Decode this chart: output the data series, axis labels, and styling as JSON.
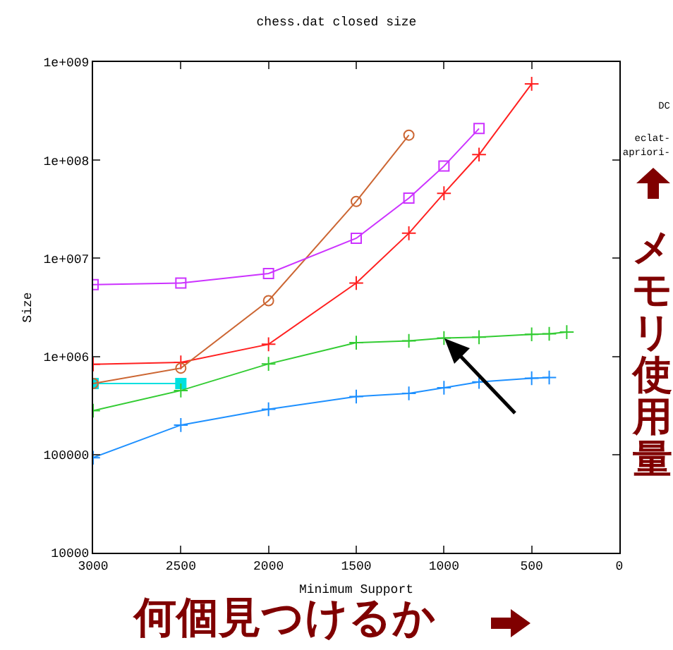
{
  "chart_data": {
    "type": "line",
    "title": "chess.dat closed size",
    "xlabel": "Minimum Support",
    "ylabel": "Size",
    "series": [
      {
        "color": "#cc33ff",
        "marker": "square",
        "x": [
          3000,
          2500,
          2000,
          1500,
          1200,
          1000,
          800
        ],
        "values": [
          5400000,
          5600000,
          7000000,
          16000000,
          41000000,
          87000000,
          210000000
        ]
      },
      {
        "color": "#cc6633",
        "marker": "circle",
        "x": [
          3000,
          2500,
          2000,
          1500,
          1200
        ],
        "values": [
          530000,
          760000,
          3700000,
          38000000,
          180000000
        ]
      },
      {
        "color": "#ff2020",
        "marker": "cross",
        "x": [
          3000,
          2500,
          2000,
          1500,
          1200,
          1000,
          800,
          500
        ],
        "values": [
          830000,
          870000,
          1330000,
          5600000,
          18000000,
          46000000,
          114000000,
          600000000
        ]
      },
      {
        "color": "#33cc33",
        "marker": "cross",
        "x": [
          3000,
          2500,
          2000,
          1500,
          1200,
          1000,
          800,
          500,
          400,
          300
        ],
        "values": [
          280000,
          450000,
          840000,
          1380000,
          1440000,
          1540000,
          1570000,
          1680000,
          1700000,
          1770000
        ]
      },
      {
        "color": "#1e90ff",
        "marker": "cross",
        "x": [
          3000,
          2500,
          2000,
          1500,
          1200,
          1000,
          800,
          500,
          400
        ],
        "values": [
          93000,
          200000,
          290000,
          390000,
          420000,
          480000,
          550000,
          600000,
          610000
        ]
      },
      {
        "color": "#00e0e0",
        "marker": "square",
        "x": [
          3000,
          2500
        ],
        "values": [
          530000,
          530000
        ]
      }
    ],
    "log": true,
    "xlim": [
      3000,
      0
    ],
    "xticks": [
      3000,
      2500,
      2000,
      1500,
      1000,
      500,
      0
    ],
    "ylim": [
      10000,
      1000000000
    ],
    "yticks": [
      {
        "value": 10000,
        "label": "10000"
      },
      {
        "value": 100000,
        "label": "100000"
      },
      {
        "value": 1000000,
        "label": "1e+006"
      },
      {
        "value": 10000000,
        "label": "1e+007"
      },
      {
        "value": 100000000,
        "label": "1e+008"
      },
      {
        "value": 1000000000,
        "label": "1e+009"
      }
    ],
    "grid": false,
    "annotations": [
      "DC",
      "eclat-",
      "apriori-",
      "メモリ使用量",
      "何個見つけるか"
    ]
  }
}
